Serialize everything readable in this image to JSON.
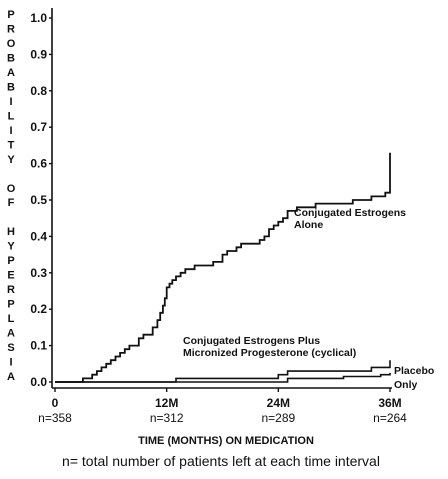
{
  "chart_data": {
    "type": "line",
    "ylabel": "PROBABILITY OF HYPERPLASIA",
    "xlabel": "TIME (MONTHS) ON MEDICATION",
    "footnote": "n= total number of patients left at each time interval",
    "ylim": [
      0,
      1.0
    ],
    "xlim": [
      0,
      36
    ],
    "y_ticks": [
      "0.0",
      "0.1",
      "0.2",
      "0.3",
      "0.4",
      "0.5",
      "0.6",
      "0.7",
      "0.8",
      "0.9",
      "1.0"
    ],
    "x_ticks": [
      {
        "label": "0",
        "n": "n=358",
        "x": 0
      },
      {
        "label": "12M",
        "n": "n=312",
        "x": 12
      },
      {
        "label": "24M",
        "n": "n=289",
        "x": 24
      },
      {
        "label": "36M",
        "n": "n=264",
        "x": 36
      }
    ],
    "grid": false,
    "series": [
      {
        "name": "Conjugated Estrogens Alone",
        "label_lines": [
          "Conjugated Estrogens",
          "Alone"
        ],
        "x": [
          0,
          3,
          4,
          4.5,
          5,
          5.5,
          6,
          6.5,
          7,
          7.5,
          8,
          9,
          9.5,
          10,
          10.5,
          11,
          11.3,
          11.6,
          11.8,
          12,
          12.3,
          12.6,
          13,
          13.5,
          14,
          14.5,
          15,
          15.5,
          16,
          17,
          18,
          18.5,
          19,
          19.5,
          20,
          21,
          22,
          22.5,
          23,
          23.5,
          24,
          24.5,
          25,
          26,
          27,
          28,
          29,
          30,
          31,
          32,
          33,
          34,
          35,
          35.5,
          36
        ],
        "y": [
          0,
          0.01,
          0.02,
          0.03,
          0.04,
          0.05,
          0.06,
          0.07,
          0.08,
          0.09,
          0.1,
          0.12,
          0.13,
          0.13,
          0.15,
          0.17,
          0.19,
          0.21,
          0.23,
          0.26,
          0.27,
          0.28,
          0.29,
          0.3,
          0.31,
          0.31,
          0.32,
          0.32,
          0.32,
          0.33,
          0.35,
          0.36,
          0.36,
          0.37,
          0.38,
          0.38,
          0.39,
          0.4,
          0.42,
          0.43,
          0.44,
          0.45,
          0.47,
          0.48,
          0.48,
          0.49,
          0.49,
          0.49,
          0.49,
          0.5,
          0.5,
          0.51,
          0.51,
          0.52,
          0.63
        ]
      },
      {
        "name": "Conjugated Estrogens Plus Micronized Progesterone (cyclical)",
        "label_lines": [
          "Conjugated Estrogens Plus",
          "Micronized Progesterone (cyclical)"
        ],
        "x": [
          0,
          12,
          13,
          18,
          24,
          25,
          33,
          34,
          35,
          36
        ],
        "y": [
          0,
          0,
          0.01,
          0.01,
          0.02,
          0.03,
          0.03,
          0.04,
          0.04,
          0.06
        ]
      },
      {
        "name": "Placebo Only",
        "label_lines": [
          "Placebo",
          "Only"
        ],
        "x": [
          0,
          24,
          25,
          30,
          31,
          35,
          36
        ],
        "y": [
          0,
          0,
          0.01,
          0.01,
          0.015,
          0.02,
          0.025
        ]
      }
    ]
  }
}
